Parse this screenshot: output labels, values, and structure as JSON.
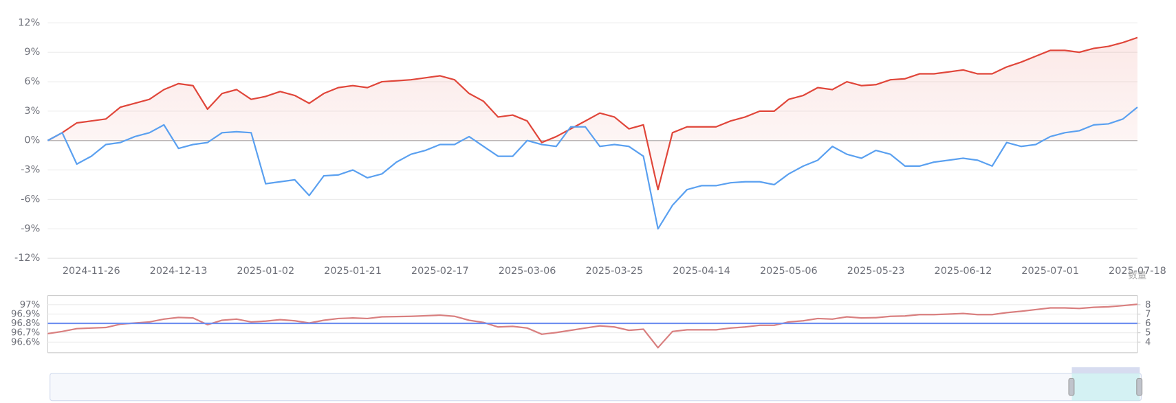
{
  "chart_data": [
    {
      "type": "line",
      "categories": [
        null,
        null,
        null,
        "2024-11-26",
        null,
        null,
        null,
        null,
        null,
        "2024-12-13",
        null,
        null,
        null,
        null,
        null,
        "2025-01-02",
        null,
        null,
        null,
        null,
        null,
        "2025-01-21",
        null,
        null,
        null,
        null,
        null,
        "2025-02-17",
        null,
        null,
        null,
        null,
        null,
        "2025-03-06",
        null,
        null,
        null,
        null,
        null,
        "2025-03-25",
        null,
        null,
        null,
        null,
        null,
        "2025-04-14",
        null,
        null,
        null,
        null,
        null,
        "2025-05-06",
        null,
        null,
        null,
        null,
        null,
        "2025-05-23",
        null,
        null,
        null,
        null,
        null,
        "2025-06-12",
        null,
        null,
        null,
        null,
        null,
        "2025-07-01",
        null,
        null,
        null,
        null,
        null,
        "2025-07-18"
      ],
      "series": [
        {
          "color": "#e0463a",
          "area": true,
          "values": [
            0,
            0.8,
            1.8,
            2.0,
            2.2,
            3.4,
            3.8,
            4.2,
            5.2,
            5.8,
            5.6,
            3.2,
            4.8,
            5.2,
            4.2,
            4.5,
            5.0,
            4.6,
            3.8,
            4.8,
            5.4,
            5.6,
            5.4,
            6.0,
            6.1,
            6.2,
            6.4,
            6.6,
            6.2,
            4.8,
            4.0,
            2.4,
            2.6,
            2.0,
            -0.2,
            0.4,
            1.2,
            2.0,
            2.8,
            2.4,
            1.2,
            1.6,
            -5.0,
            0.8,
            1.4,
            1.4,
            1.4,
            2.0,
            2.4,
            3.0,
            3.0,
            4.2,
            4.6,
            5.4,
            5.2,
            6.0,
            5.6,
            5.7,
            6.2,
            6.3,
            6.8,
            6.8,
            7.0,
            7.2,
            6.8,
            6.8,
            7.5,
            8.0,
            8.6,
            9.2,
            9.2,
            9.0,
            9.4,
            9.6,
            10.0,
            10.5
          ]
        },
        {
          "color": "#5aa0f0",
          "values": [
            0,
            0.8,
            -2.4,
            -1.6,
            -0.4,
            -0.2,
            0.4,
            0.8,
            1.6,
            -0.8,
            -0.4,
            -0.2,
            0.8,
            0.9,
            0.8,
            -4.4,
            -4.2,
            -4.0,
            -5.6,
            -3.6,
            -3.5,
            -3.0,
            -3.8,
            -3.4,
            -2.2,
            -1.4,
            -1.0,
            -0.4,
            -0.4,
            0.4,
            -0.6,
            -1.6,
            -1.6,
            0.0,
            -0.4,
            -0.6,
            1.4,
            1.4,
            -0.6,
            -0.4,
            -0.6,
            -1.6,
            -9.0,
            -6.6,
            -5.0,
            -4.6,
            -4.6,
            -4.3,
            -4.2,
            -4.2,
            -4.5,
            -3.4,
            -2.6,
            -2.0,
            -0.6,
            -1.4,
            -1.8,
            -1.0,
            -1.4,
            -2.6,
            -2.6,
            -2.2,
            -2.0,
            -1.8,
            -2.0,
            -2.6,
            -0.2,
            -0.6,
            -0.4,
            0.4,
            0.8,
            1.0,
            1.6,
            1.7,
            2.2,
            3.4
          ]
        }
      ],
      "ylim": [
        -12,
        12
      ],
      "yticks": [
        {
          "value": -12,
          "label": "-12%"
        },
        {
          "value": -9,
          "label": "-9%"
        },
        {
          "value": -6,
          "label": "-6%"
        },
        {
          "value": -3,
          "label": "-3%"
        },
        {
          "value": 0,
          "label": "0%"
        },
        {
          "value": 3,
          "label": "3%"
        },
        {
          "value": 6,
          "label": "6%"
        },
        {
          "value": 9,
          "label": "9%"
        },
        {
          "value": 12,
          "label": "12%"
        }
      ],
      "grid": true
    },
    {
      "type": "line",
      "series": [
        {
          "color": "#d97f7f",
          "values": [
            96.69,
            96.714,
            96.744,
            96.75,
            96.756,
            96.792,
            96.804,
            96.816,
            96.846,
            96.864,
            96.858,
            96.786,
            96.834,
            96.846,
            96.816,
            96.825,
            96.84,
            96.828,
            96.804,
            96.834,
            96.852,
            96.858,
            96.852,
            96.87,
            96.873,
            96.876,
            96.882,
            96.888,
            96.876,
            96.834,
            96.81,
            96.762,
            96.768,
            96.75,
            96.684,
            96.702,
            96.726,
            96.75,
            96.774,
            96.762,
            96.726,
            96.738,
            96.54,
            96.714,
            96.732,
            96.732,
            96.732,
            96.75,
            96.762,
            96.78,
            96.78,
            96.816,
            96.828,
            96.852,
            96.846,
            96.87,
            96.858,
            96.861,
            96.876,
            96.879,
            96.894,
            96.894,
            96.9,
            96.906,
            96.894,
            96.894,
            96.915,
            96.93,
            96.948,
            96.966,
            96.966,
            96.96,
            96.972,
            96.978,
            96.99,
            97.005
          ]
        },
        {
          "color": "#6f8ff0",
          "axis": "y2",
          "values": [
            6,
            6,
            6,
            6,
            6,
            6,
            6,
            6,
            6,
            6,
            6,
            6,
            6,
            6,
            6,
            6,
            6,
            6,
            6,
            6,
            6,
            6,
            6,
            6,
            6,
            6,
            6,
            6,
            6,
            6,
            6,
            6,
            6,
            6,
            6,
            6,
            6,
            6,
            6,
            6,
            6,
            6,
            6,
            6,
            6,
            6,
            6,
            6,
            6,
            6,
            6,
            6,
            6,
            6,
            6,
            6,
            6,
            6,
            6,
            6,
            6,
            6,
            6,
            6,
            6,
            6,
            6,
            6,
            6,
            6,
            6,
            6,
            6,
            6,
            6,
            6
          ]
        }
      ],
      "ylim": [
        96.486,
        97.098
      ],
      "yticks": [
        {
          "value": 96.6,
          "label": "96.6%"
        },
        {
          "value": 96.7,
          "label": "96.7%"
        },
        {
          "value": 96.8,
          "label": "96.8%"
        },
        {
          "value": 96.9,
          "label": "96.9%"
        },
        {
          "value": 97,
          "label": "97%"
        }
      ],
      "y2lim": [
        2.86,
        8.98
      ],
      "y2ticks": [
        4,
        5,
        6,
        7,
        8
      ],
      "y2label": "数量",
      "grid": true
    }
  ]
}
